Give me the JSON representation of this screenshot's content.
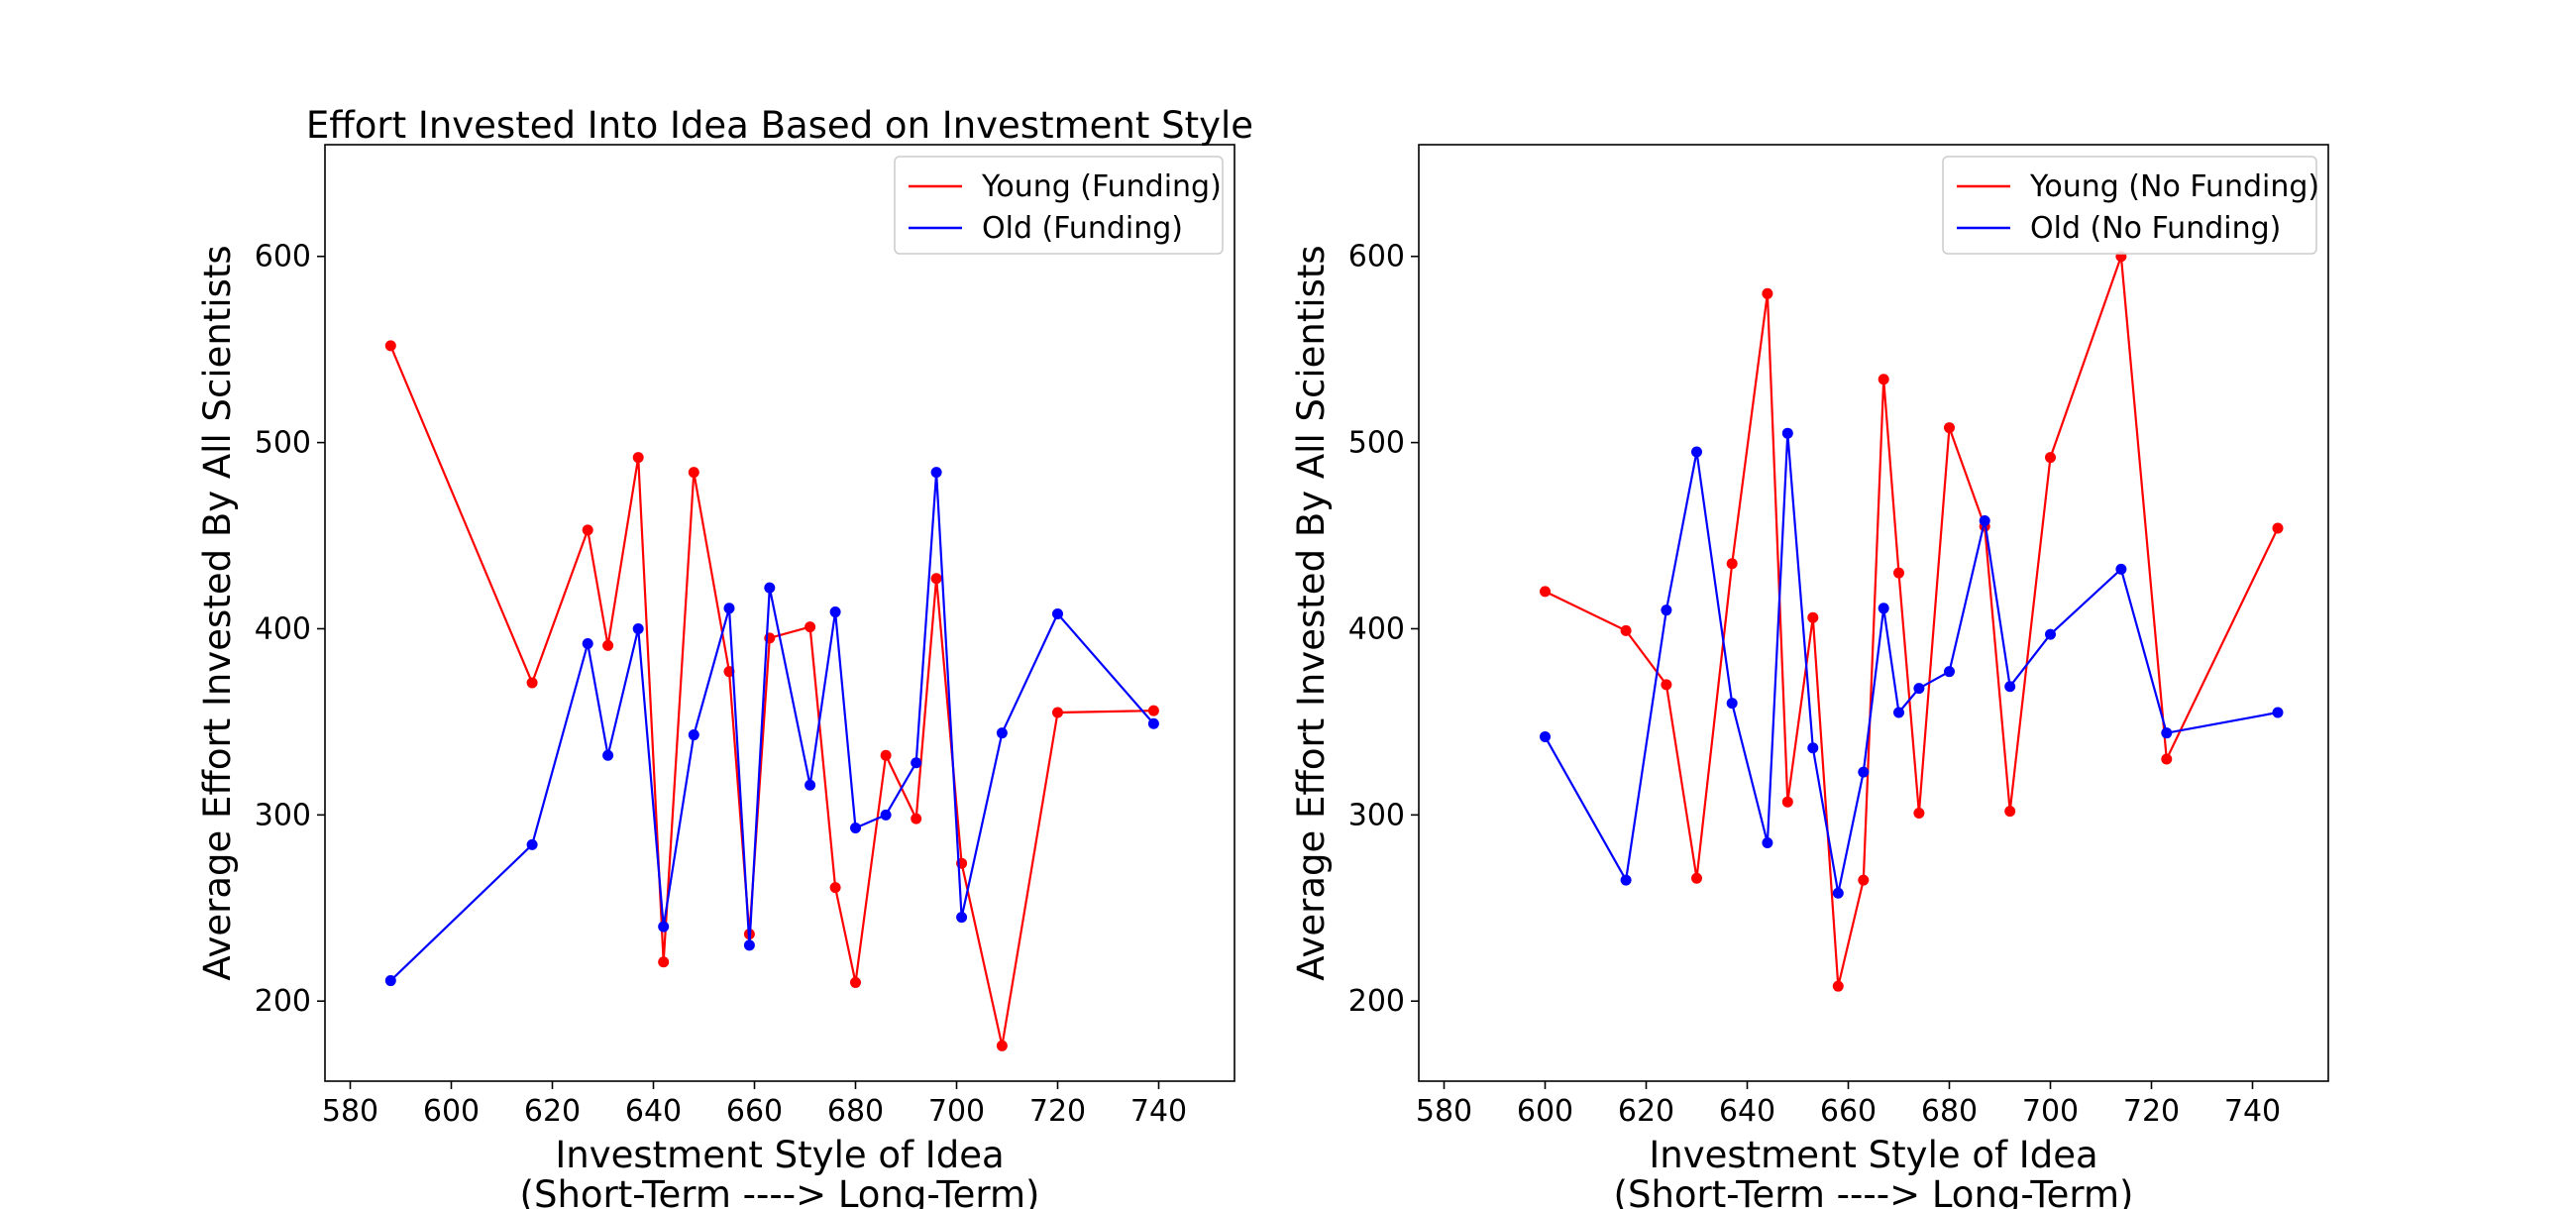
{
  "chart_data": [
    {
      "type": "line",
      "title": "Effort Invested Into Idea Based on Investment Style",
      "xlabel": [
        "Investment Style of Idea",
        "(Short-Term ----> Long-Term)"
      ],
      "ylabel": "Average Effort Invested By All Scientists",
      "xlim": [
        575,
        755
      ],
      "ylim": [
        157,
        660
      ],
      "xticks": [
        580,
        600,
        620,
        640,
        660,
        680,
        700,
        720,
        740
      ],
      "yticks": [
        200,
        300,
        400,
        500,
        600
      ],
      "grid": false,
      "legend_position": "top-right",
      "series": [
        {
          "name": "Young (Funding)",
          "color": "#ff0000",
          "points": [
            [
              588,
              552
            ],
            [
              616,
              371
            ],
            [
              627,
              453
            ],
            [
              631,
              391
            ],
            [
              637,
              492
            ],
            [
              642,
              221
            ],
            [
              648,
              484
            ],
            [
              655,
              377
            ],
            [
              659,
              236
            ],
            [
              663,
              395
            ],
            [
              671,
              401
            ],
            [
              676,
              261
            ],
            [
              680,
              210
            ],
            [
              686,
              332
            ],
            [
              692,
              298
            ],
            [
              696,
              427
            ],
            [
              701,
              274
            ],
            [
              709,
              176
            ],
            [
              720,
              355
            ],
            [
              739,
              356
            ]
          ]
        },
        {
          "name": "Old (Funding)",
          "color": "#0000ff",
          "points": [
            [
              588,
              211
            ],
            [
              616,
              284
            ],
            [
              627,
              392
            ],
            [
              631,
              332
            ],
            [
              637,
              400
            ],
            [
              642,
              240
            ],
            [
              648,
              343
            ],
            [
              655,
              411
            ],
            [
              659,
              230
            ],
            [
              663,
              422
            ],
            [
              671,
              316
            ],
            [
              676,
              409
            ],
            [
              680,
              293
            ],
            [
              686,
              300
            ],
            [
              692,
              328
            ],
            [
              696,
              484
            ],
            [
              701,
              245
            ],
            [
              709,
              344
            ],
            [
              720,
              408
            ],
            [
              739,
              349
            ]
          ]
        }
      ]
    },
    {
      "type": "line",
      "title": "",
      "xlabel": [
        "Investment Style of Idea",
        "(Short-Term ----> Long-Term)"
      ],
      "ylabel": "Average Effort Invested By All Scientists",
      "xlim": [
        575,
        755
      ],
      "ylim": [
        157,
        660
      ],
      "xticks": [
        580,
        600,
        620,
        640,
        660,
        680,
        700,
        720,
        740
      ],
      "yticks": [
        200,
        300,
        400,
        500,
        600
      ],
      "grid": false,
      "legend_position": "top-right",
      "series": [
        {
          "name": "Young (No Funding)",
          "color": "#ff0000",
          "points": [
            [
              600,
              420
            ],
            [
              616,
              399
            ],
            [
              624,
              370
            ],
            [
              630,
              266
            ],
            [
              637,
              435
            ],
            [
              644,
              580
            ],
            [
              648,
              307
            ],
            [
              653,
              406
            ],
            [
              658,
              208
            ],
            [
              663,
              265
            ],
            [
              667,
              534
            ],
            [
              670,
              430
            ],
            [
              674,
              301
            ],
            [
              680,
              508
            ],
            [
              687,
              455
            ],
            [
              692,
              302
            ],
            [
              700,
              492
            ],
            [
              714,
              600
            ],
            [
              723,
              330
            ],
            [
              745,
              454
            ]
          ]
        },
        {
          "name": "Old (No Funding)",
          "color": "#0000ff",
          "points": [
            [
              600,
              342
            ],
            [
              616,
              265
            ],
            [
              624,
              410
            ],
            [
              630,
              495
            ],
            [
              637,
              360
            ],
            [
              644,
              285
            ],
            [
              648,
              505
            ],
            [
              653,
              336
            ],
            [
              658,
              258
            ],
            [
              663,
              323
            ],
            [
              667,
              411
            ],
            [
              670,
              355
            ],
            [
              674,
              368
            ],
            [
              680,
              377
            ],
            [
              687,
              458
            ],
            [
              692,
              369
            ],
            [
              700,
              397
            ],
            [
              714,
              432
            ],
            [
              723,
              344
            ],
            [
              745,
              355
            ]
          ]
        }
      ]
    }
  ]
}
